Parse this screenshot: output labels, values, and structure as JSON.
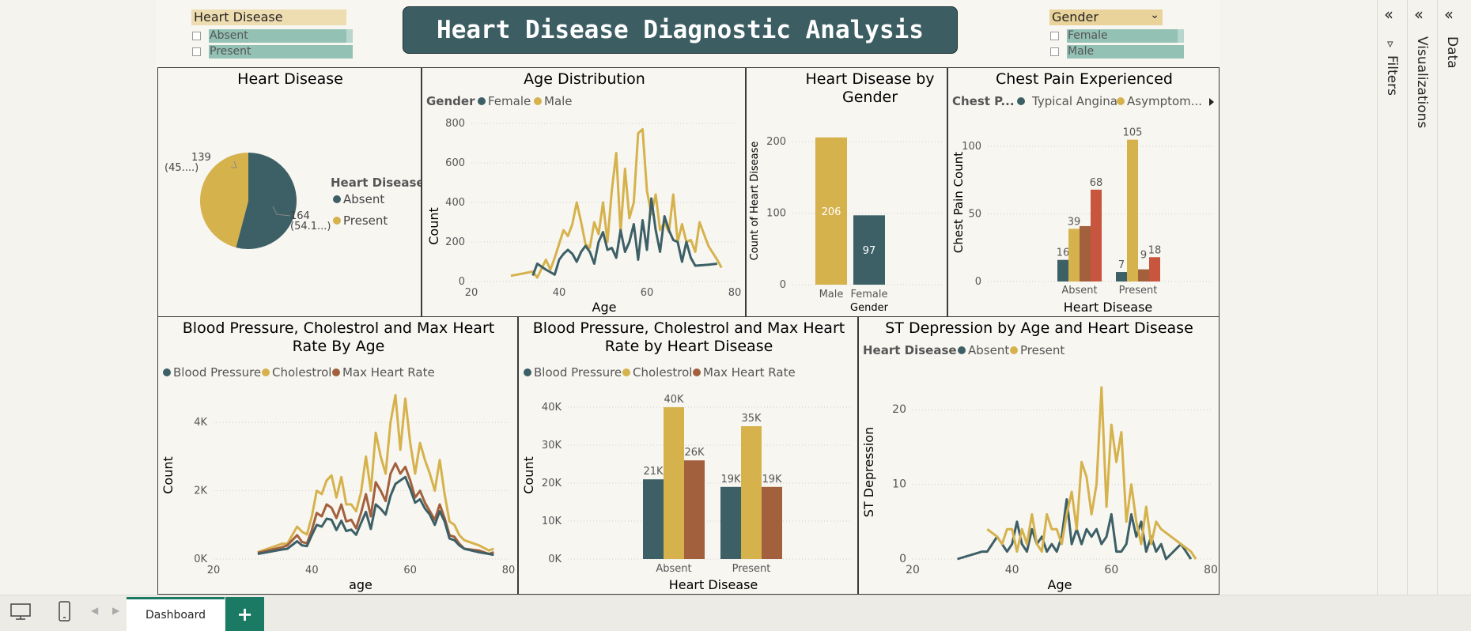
{
  "title": "Heart Disease Diagnostic Analysis",
  "colors": {
    "teal": "#3d5f66",
    "gold": "#d6b24d",
    "rust": "#a3603c",
    "red": "#c8553d",
    "slicer_gold": "#efddb2",
    "slicer_teal": "#93c1b4",
    "accent": "#1b7a64"
  },
  "slicer_hd": {
    "title": "Heart Disease",
    "options": [
      "Absent",
      "Present"
    ]
  },
  "slicer_gender": {
    "title": "Gender",
    "options": [
      "Female",
      "Male"
    ]
  },
  "panes": {
    "filters": "Filters",
    "visualizations": "Visualizations",
    "data": "Data",
    "filter_icon": "funnel-icon"
  },
  "footer": {
    "tab": "Dashboard",
    "add": "+"
  },
  "charts": {
    "pie": {
      "title": "Heart Disease",
      "legend_title": "Heart Disease",
      "absent_label": "Absent",
      "present_label": "Present",
      "label_present": "139",
      "label_present_pct": "(45....)",
      "label_absent": "164",
      "label_absent_pct": "(54.1...)"
    },
    "age": {
      "title": "Age Distribution",
      "legend_title": "Gender",
      "s1": "Female",
      "s2": "Male",
      "xlabel": "Age",
      "ylabel": "Count"
    },
    "gender": {
      "title_l1": "Heart Disease by",
      "title_l2": "Gender",
      "xlabel": "Gender",
      "ylabel": "Count of Heart Disease"
    },
    "chest": {
      "title": "Chest Pain Experienced",
      "legend_title": "Chest P...",
      "s1": "Typical Angina",
      "s2": "Asymptom...",
      "xlabel": "Heart Disease",
      "ylabel": "Chest Pain Count"
    },
    "bpage": {
      "title_l1": "Blood Pressure, Cholestrol and Max Heart",
      "title_l2": "Rate By Age",
      "s1": "Blood Pressure",
      "s2": "Cholestrol",
      "s3": "Max Heart Rate",
      "xlabel": "age",
      "ylabel": "Count"
    },
    "bphd": {
      "title_l1": "Blood Pressure, Cholestrol and Max Heart",
      "title_l2": "Rate by Heart Disease",
      "s1": "Blood Pressure",
      "s2": "Cholestrol",
      "s3": "Max Heart Rate",
      "xlabel": "Heart Disease",
      "ylabel": "Count"
    },
    "st": {
      "title": "ST Depression by Age and Heart Disease",
      "legend_title": "Heart Disease",
      "s1": "Absent",
      "s2": "Present",
      "xlabel": "Age",
      "ylabel": "ST Depression"
    }
  },
  "chart_data": [
    {
      "id": "pie",
      "type": "pie",
      "categories": [
        "Absent",
        "Present"
      ],
      "values": [
        164,
        139
      ]
    },
    {
      "id": "age",
      "type": "line",
      "xlim": [
        20,
        80
      ],
      "ylim": [
        0,
        800
      ],
      "xticks": [
        20,
        40,
        60,
        80
      ],
      "yticks": [
        0,
        200,
        400,
        600,
        800
      ],
      "series": [
        {
          "name": "Female",
          "x": [
            34,
            35,
            37,
            39,
            40,
            41,
            42,
            43,
            44,
            45,
            46,
            47,
            48,
            49,
            50,
            51,
            52,
            53,
            54,
            55,
            56,
            57,
            58,
            59,
            60,
            61,
            62,
            63,
            64,
            65,
            66,
            67,
            68,
            69,
            70,
            71,
            74,
            76
          ],
          "y": [
            30,
            90,
            60,
            35,
            110,
            140,
            160,
            140,
            100,
            150,
            180,
            150,
            90,
            200,
            250,
            160,
            170,
            120,
            260,
            150,
            200,
            290,
            110,
            310,
            160,
            420,
            260,
            150,
            330,
            260,
            210,
            200,
            100,
            200,
            120,
            80,
            85,
            90
          ]
        },
        {
          "name": "Male",
          "x": [
            29,
            34,
            35,
            37,
            38,
            39,
            40,
            41,
            42,
            43,
            44,
            45,
            46,
            47,
            48,
            49,
            50,
            51,
            52,
            53,
            54,
            55,
            56,
            57,
            58,
            59,
            60,
            61,
            62,
            63,
            64,
            65,
            66,
            67,
            68,
            69,
            70,
            71,
            72,
            74,
            76,
            77
          ],
          "y": [
            29,
            50,
            20,
            110,
            60,
            120,
            190,
            260,
            230,
            290,
            400,
            300,
            190,
            170,
            300,
            240,
            400,
            200,
            460,
            650,
            250,
            570,
            320,
            400,
            750,
            770,
            460,
            340,
            440,
            260,
            300,
            250,
            440,
            200,
            290,
            200,
            210,
            150,
            300,
            180,
            110,
            70
          ]
        }
      ]
    },
    {
      "id": "gender",
      "type": "bar",
      "categories": [
        "Male",
        "Female"
      ],
      "values": [
        206,
        97
      ],
      "ylim": [
        0,
        250
      ],
      "yticks": [
        0,
        100,
        200
      ]
    },
    {
      "id": "chest",
      "type": "bar",
      "categories": [
        "Absent",
        "Present"
      ],
      "ylim": [
        0,
        120
      ],
      "yticks": [
        0,
        50,
        100
      ],
      "series": [
        {
          "name": "Typical Angina",
          "values": [
            16,
            7
          ]
        },
        {
          "name": "Asymptom...",
          "values": [
            39,
            105
          ]
        },
        {
          "name": "",
          "values": [
            41,
            9
          ]
        },
        {
          "name": "",
          "values": [
            68,
            18
          ]
        }
      ]
    },
    {
      "id": "bpage",
      "type": "line",
      "xlim": [
        20,
        80
      ],
      "ylim": [
        0,
        5000
      ],
      "xticks": [
        20,
        40,
        60,
        80
      ],
      "yticks": [
        0,
        2000,
        4000
      ],
      "ytick_labels": [
        "0K",
        "2K",
        "4K"
      ],
      "x": [
        29,
        34,
        35,
        37,
        38,
        39,
        40,
        41,
        42,
        43,
        44,
        45,
        46,
        47,
        48,
        49,
        50,
        51,
        52,
        53,
        54,
        55,
        56,
        57,
        58,
        59,
        60,
        61,
        62,
        63,
        64,
        65,
        66,
        67,
        68,
        69,
        70,
        71,
        74,
        76,
        77
      ],
      "series": [
        {
          "name": "Blood Pressure",
          "y": [
            150,
            280,
            300,
            520,
            400,
            380,
            700,
            1000,
            950,
            1180,
            1150,
            850,
            1120,
            820,
            860,
            710,
            1050,
            1380,
            880,
            1600,
            1470,
            1300,
            1850,
            2200,
            2300,
            2400,
            2050,
            1650,
            1750,
            1480,
            1300,
            1000,
            1400,
            1100,
            600,
            550,
            400,
            300,
            200,
            150,
            120
          ]
        },
        {
          "name": "Cholestrol",
          "y": [
            200,
            450,
            450,
            950,
            800,
            720,
            1250,
            2000,
            1900,
            2300,
            2450,
            1800,
            2400,
            1600,
            1600,
            1400,
            1950,
            3000,
            2000,
            3700,
            3000,
            2500,
            4000,
            4800,
            3200,
            4700,
            3400,
            2500,
            3400,
            2900,
            2500,
            2000,
            2900,
            1900,
            1100,
            1000,
            700,
            550,
            400,
            250,
            300
          ]
        },
        {
          "name": "Max Heart Rate",
          "y": [
            180,
            350,
            400,
            700,
            500,
            460,
            850,
            1350,
            1250,
            1600,
            1500,
            1200,
            1600,
            1100,
            1150,
            900,
            1350,
            1900,
            1250,
            2250,
            2000,
            1700,
            2500,
            2800,
            2500,
            2700,
            2300,
            1800,
            2000,
            1650,
            1400,
            1150,
            1600,
            1200,
            700,
            650,
            450,
            300,
            250,
            150,
            200
          ]
        }
      ]
    },
    {
      "id": "bphd",
      "type": "bar",
      "categories": [
        "Absent",
        "Present"
      ],
      "ylim": [
        0,
        45000
      ],
      "yticks": [
        0,
        10000,
        20000,
        30000,
        40000
      ],
      "ytick_labels": [
        "0K",
        "10K",
        "20K",
        "30K",
        "40K"
      ],
      "series": [
        {
          "name": "Blood Pressure",
          "values": [
            21000,
            19000
          ],
          "labels": [
            "21K",
            "19K"
          ]
        },
        {
          "name": "Cholestrol",
          "values": [
            40000,
            35000
          ],
          "labels": [
            "40K",
            "35K"
          ]
        },
        {
          "name": "Max Heart Rate",
          "values": [
            26000,
            19000
          ],
          "labels": [
            "26K",
            "19K"
          ]
        }
      ]
    },
    {
      "id": "st",
      "type": "line",
      "xlim": [
        20,
        80
      ],
      "ylim": [
        0,
        25
      ],
      "xticks": [
        20,
        40,
        60,
        80
      ],
      "yticks": [
        0,
        10,
        20
      ],
      "series": [
        {
          "name": "Absent",
          "x": [
            29,
            34,
            35,
            37,
            38,
            39,
            40,
            41,
            42,
            43,
            44,
            45,
            46,
            47,
            48,
            49,
            50,
            51,
            52,
            53,
            54,
            55,
            56,
            57,
            58,
            59,
            60,
            61,
            62,
            63,
            64,
            65,
            66,
            67,
            68,
            69,
            70,
            71,
            74,
            76
          ],
          "y": [
            0,
            1,
            1,
            3,
            2,
            1,
            2,
            5,
            2,
            1,
            4,
            2,
            3,
            1,
            2,
            1,
            3,
            8,
            2,
            4,
            2,
            4,
            3,
            4,
            2,
            3,
            6,
            1,
            1,
            2,
            6,
            3,
            5,
            1,
            3,
            1,
            2,
            0,
            2,
            0
          ]
        },
        {
          "name": "Present",
          "x": [
            35,
            37,
            38,
            39,
            40,
            41,
            42,
            43,
            44,
            45,
            46,
            47,
            48,
            49,
            50,
            51,
            52,
            53,
            54,
            55,
            56,
            57,
            58,
            59,
            60,
            61,
            62,
            63,
            64,
            65,
            66,
            67,
            68,
            69,
            70,
            74,
            76,
            77
          ],
          "y": [
            4,
            3,
            2,
            4,
            4,
            1,
            4,
            2,
            6,
            2,
            1,
            6,
            4,
            4,
            2,
            6,
            9,
            4,
            13,
            11,
            6,
            10,
            23,
            7,
            18,
            13,
            17,
            5,
            10,
            5,
            2,
            7,
            2,
            5,
            4,
            2,
            1,
            0
          ]
        }
      ]
    }
  ]
}
